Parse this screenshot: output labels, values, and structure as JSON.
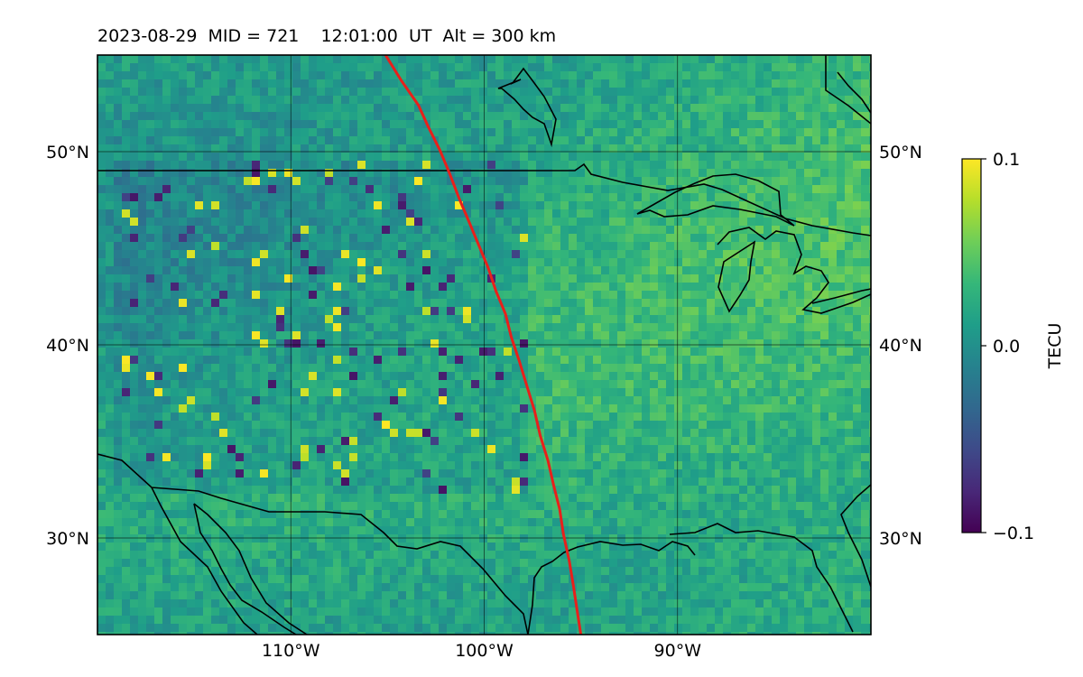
{
  "title": "2023-08-29  MID = 721    12:01:00  UT  Alt = 300 km",
  "map": {
    "lon_range": [
      -120,
      -80
    ],
    "lat_range": [
      25,
      55
    ],
    "lon_ticks": [
      {
        "value": -110,
        "label": "110°W"
      },
      {
        "value": -100,
        "label": "100°W"
      },
      {
        "value": -90,
        "label": "90°W"
      }
    ],
    "lat_ticks": [
      {
        "value": 50,
        "label": "50°N"
      },
      {
        "value": 40,
        "label": "40°N"
      },
      {
        "value": 30,
        "label": "30°N"
      }
    ],
    "grid": true,
    "terminator_color": "#e8201b",
    "terminator_path": [
      [
        -105.1,
        55
      ],
      [
        -104.3,
        53.7
      ],
      [
        -103.4,
        52.4
      ],
      [
        -102.9,
        51.3
      ],
      [
        -102.3,
        50.1
      ],
      [
        -101.8,
        48.9
      ],
      [
        -101.3,
        47.6
      ],
      [
        -100.8,
        46.4
      ],
      [
        -100.3,
        45.2
      ],
      [
        -99.8,
        44.0
      ],
      [
        -99.4,
        42.8
      ],
      [
        -98.9,
        41.6
      ],
      [
        -98.6,
        40.4
      ],
      [
        -98.2,
        39.2
      ],
      [
        -97.8,
        37.9
      ],
      [
        -97.4,
        36.6
      ],
      [
        -97.1,
        35.3
      ],
      [
        -96.7,
        34.0
      ],
      [
        -96.4,
        32.7
      ],
      [
        -96.1,
        31.5
      ],
      [
        -95.9,
        30.2
      ],
      [
        -95.6,
        28.8
      ],
      [
        -95.4,
        27.6
      ],
      [
        -95.2,
        26.3
      ],
      [
        -95.0,
        25
      ]
    ]
  },
  "colorbar": {
    "label": "TECU",
    "ticks": [
      {
        "value": 0.1,
        "label": "0.1"
      },
      {
        "value": 0.0,
        "label": "0.0"
      },
      {
        "value": -0.1,
        "label": "−0.1"
      }
    ],
    "colors": [
      "#440154",
      "#482878",
      "#3e4a89",
      "#31688e",
      "#26828e",
      "#1f9e89",
      "#35b779",
      "#6ece58",
      "#b5de2b",
      "#fde725"
    ]
  }
}
